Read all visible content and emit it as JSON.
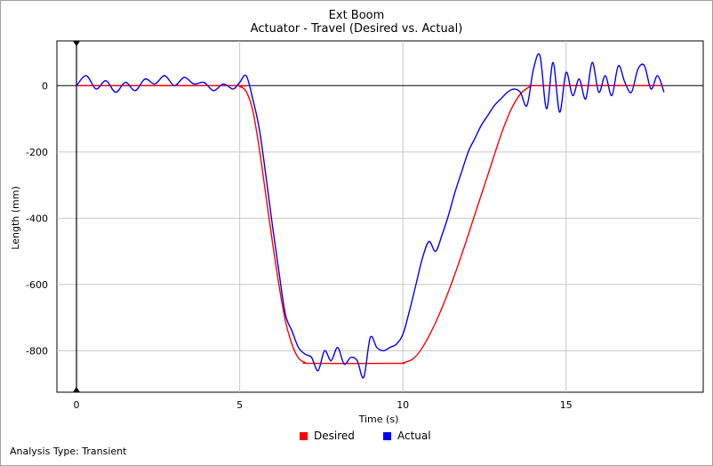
{
  "footer": {
    "analysis_type": "Analysis Type: Transient"
  },
  "colors": {
    "desired": "#ff0000",
    "actual": "#0000ff",
    "grid": "#c8c8c8",
    "zero_line": "#000000"
  },
  "chart_data": {
    "type": "line",
    "title": "Ext Boom",
    "subtitle": "Actuator - Travel (Desired vs. Actual)",
    "xlabel": "Time (s)",
    "ylabel": "Length (mm)",
    "xlim": [
      -0.6,
      19.2
    ],
    "ylim": [
      -925,
      135
    ],
    "xticks": [
      0,
      5,
      10,
      15
    ],
    "yticks": [
      0,
      -200,
      -400,
      -600,
      -800
    ],
    "grid": true,
    "legend": "bottom-center",
    "series": [
      {
        "name": "Desired",
        "color": "#ff0000",
        "x": [
          0,
          4.8,
          5.0,
          5.2,
          5.4,
          5.6,
          5.8,
          6.0,
          6.2,
          6.4,
          6.6,
          6.8,
          7.0,
          7.2,
          9.8,
          10.0,
          10.3,
          10.6,
          11.0,
          11.4,
          11.8,
          12.2,
          12.6,
          13.0,
          13.3,
          13.6,
          13.9,
          14.2,
          18.0
        ],
        "y": [
          0,
          0,
          -3,
          -18,
          -75,
          -190,
          -330,
          -470,
          -600,
          -710,
          -780,
          -822,
          -835,
          -838,
          -838,
          -836,
          -825,
          -790,
          -715,
          -620,
          -510,
          -390,
          -270,
          -150,
          -75,
          -25,
          -3,
          0,
          0
        ]
      },
      {
        "name": "Actual",
        "color": "#0000ff",
        "x": [
          0,
          0.3,
          0.6,
          0.9,
          1.2,
          1.5,
          1.8,
          2.1,
          2.4,
          2.7,
          3.0,
          3.3,
          3.6,
          3.9,
          4.2,
          4.5,
          4.8,
          5.0,
          5.2,
          5.4,
          5.6,
          5.8,
          6.0,
          6.2,
          6.4,
          6.6,
          6.8,
          7.0,
          7.2,
          7.4,
          7.6,
          7.8,
          8.0,
          8.2,
          8.4,
          8.6,
          8.8,
          9.0,
          9.2,
          9.4,
          9.6,
          9.8,
          10.0,
          10.2,
          10.4,
          10.6,
          10.8,
          11.0,
          11.2,
          11.4,
          11.6,
          11.8,
          12.0,
          12.2,
          12.4,
          12.6,
          12.8,
          13.0,
          13.2,
          13.4,
          13.6,
          13.8,
          14.0,
          14.2,
          14.4,
          14.6,
          14.8,
          15.0,
          15.2,
          15.4,
          15.6,
          15.8,
          16.0,
          16.2,
          16.4,
          16.6,
          16.8,
          17.0,
          17.2,
          17.4,
          17.6,
          17.8,
          18.0
        ],
        "y": [
          0,
          30,
          -10,
          15,
          -20,
          10,
          -15,
          20,
          5,
          30,
          0,
          25,
          5,
          10,
          -15,
          5,
          -10,
          10,
          30,
          -40,
          -130,
          -270,
          -420,
          -560,
          -690,
          -740,
          -790,
          -810,
          -820,
          -860,
          -800,
          -830,
          -790,
          -840,
          -820,
          -830,
          -880,
          -760,
          -790,
          -800,
          -790,
          -780,
          -750,
          -680,
          -600,
          -520,
          -470,
          -500,
          -450,
          -390,
          -320,
          -260,
          -200,
          -160,
          -120,
          -90,
          -60,
          -40,
          -20,
          -10,
          -20,
          -60,
          50,
          90,
          -70,
          70,
          -80,
          40,
          -30,
          20,
          -40,
          70,
          -20,
          30,
          -30,
          60,
          10,
          -20,
          50,
          60,
          -10,
          30,
          -20
        ]
      }
    ]
  }
}
